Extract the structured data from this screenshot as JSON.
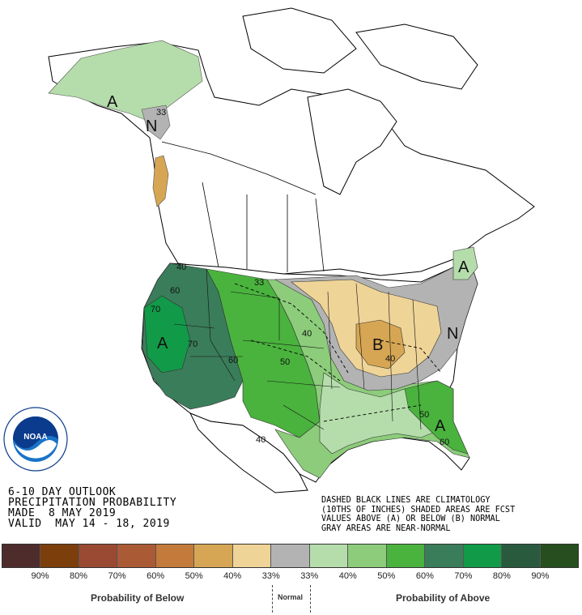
{
  "title_lines": [
    "6-10 DAY OUTLOOK",
    "PRECIPITATION PROBABILITY",
    "MADE  8 MAY 2019",
    "VALID  MAY 14 - 18, 2019"
  ],
  "notes_lines": [
    "DASHED BLACK LINES ARE CLIMATOLOGY",
    "(10THS OF INCHES) SHADED AREAS ARE FCST",
    "VALUES ABOVE (A) OR BELOW (B) NORMAL",
    "GRAY AREAS ARE NEAR-NORMAL"
  ],
  "logo": {
    "text": "NOAA",
    "ring_text": "NATIONAL OCEANIC AND ATMOSPHERIC ADMINISTRATION · U.S. DEPARTMENT OF COMMERCE"
  },
  "legend": {
    "labels": [
      "90%",
      "80%",
      "70%",
      "60%",
      "50%",
      "40%",
      "33%",
      "33%",
      "40%",
      "50%",
      "60%",
      "70%",
      "80%",
      "90%"
    ],
    "colors": [
      "#4f2c2c",
      "#7c3e0b",
      "#9a4a33",
      "#ab5a36",
      "#c47a3a",
      "#d6a654",
      "#efd497",
      "#b3b3b3",
      "#b5ddab",
      "#8ccc7a",
      "#4ab33e",
      "#3a7d5a",
      "#119a48",
      "#2a5a3e",
      "#264e1e"
    ],
    "below_caption": "Probability of Below",
    "normal_caption": "Normal",
    "above_caption": "Probability of Above"
  },
  "map_labels": {
    "alaska_A": "A",
    "alaska_N": "N",
    "alaska_33": "33",
    "west_A": "A",
    "southeast_A": "A",
    "midwest_B": "B",
    "northeast_N": "N",
    "northeast_A": "A",
    "c40_ne": "40",
    "c60_nw": "60",
    "c70_ca": "70",
    "c70_nv": "70",
    "c60_ut": "60",
    "c33_mt": "33",
    "c40_ks": "40",
    "c50_ne": "50",
    "c40_tx": "40",
    "c40_b": "40",
    "c50_se": "50",
    "c60_fl": "60"
  }
}
